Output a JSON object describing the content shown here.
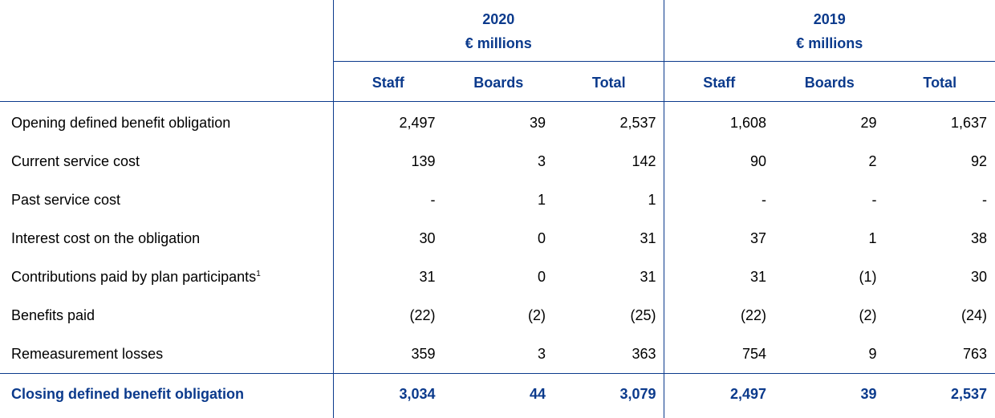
{
  "table": {
    "groups": [
      {
        "year": "2020",
        "unit": "€ millions"
      },
      {
        "year": "2019",
        "unit": "€ millions"
      }
    ],
    "columns": [
      "Staff",
      "Boards",
      "Total",
      "Staff",
      "Boards",
      "Total"
    ],
    "rows": [
      {
        "label": "Opening defined benefit obligation",
        "values": [
          "2,497",
          "39",
          "2,537",
          "1,608",
          "29",
          "1,637"
        ]
      },
      {
        "label": "Current service cost",
        "values": [
          "139",
          "3",
          "142",
          "90",
          "2",
          "92"
        ]
      },
      {
        "label": "Past service cost",
        "values": [
          "-",
          "1",
          "1",
          "-",
          "-",
          "-"
        ]
      },
      {
        "label": "Interest cost on the obligation",
        "values": [
          "30",
          "0",
          "31",
          "37",
          "1",
          "38"
        ]
      },
      {
        "label": "Contributions paid by plan participants",
        "note": "1",
        "values": [
          "31",
          "0",
          "31",
          "31",
          "(1)",
          "30"
        ]
      },
      {
        "label": "Benefits paid",
        "values": [
          "(22)",
          "(2)",
          "(25)",
          "(22)",
          "(2)",
          "(24)"
        ]
      },
      {
        "label": "Remeasurement losses",
        "values": [
          "359",
          "3",
          "363",
          "754",
          "9",
          "763"
        ]
      }
    ],
    "total": {
      "label": "Closing defined benefit obligation",
      "values": [
        "3,034",
        "44",
        "3,079",
        "2,497",
        "39",
        "2,537"
      ]
    }
  }
}
